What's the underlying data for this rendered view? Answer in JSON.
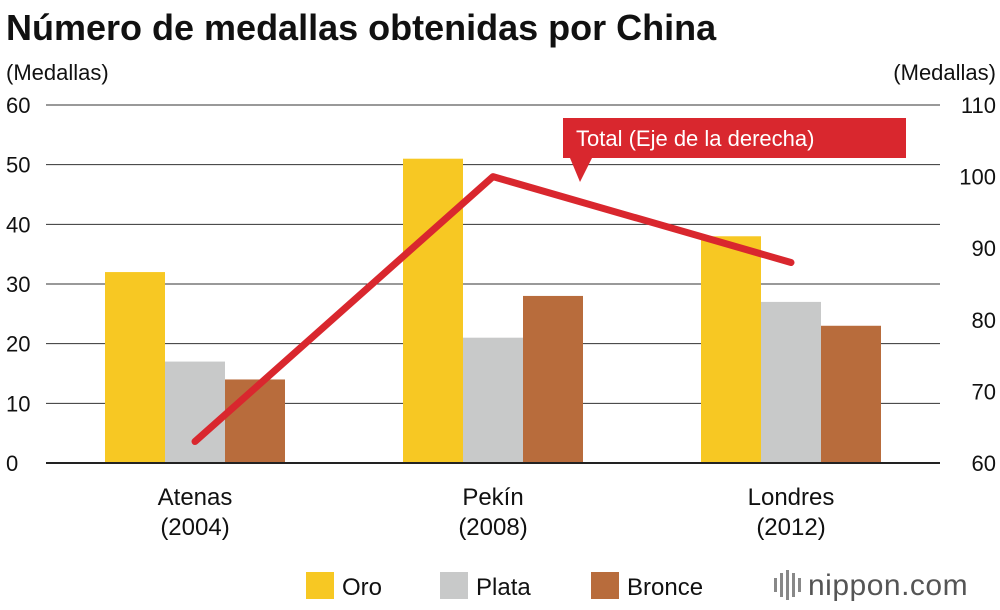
{
  "chart_data": {
    "type": "bar",
    "title": "Número de medallas obtenidas por China",
    "ylabel_left": "(Medallas)",
    "ylabel_right": "(Medallas)",
    "ylim_left": [
      0,
      60
    ],
    "yticks_left": [
      0,
      10,
      20,
      30,
      40,
      50,
      60
    ],
    "ylim_right": [
      60,
      110
    ],
    "yticks_right": [
      60,
      70,
      80,
      90,
      100,
      110
    ],
    "categories": [
      {
        "name": "Atenas",
        "year": "(2004)"
      },
      {
        "name": "Pekín",
        "year": "(2008)"
      },
      {
        "name": "Londres",
        "year": "(2012)"
      }
    ],
    "series": [
      {
        "name": "Oro",
        "color": "#f7c823",
        "values": [
          32,
          51,
          38
        ]
      },
      {
        "name": "Plata",
        "color": "#c8c9c9",
        "values": [
          17,
          21,
          27
        ]
      },
      {
        "name": "Bronce",
        "color": "#b86c3c",
        "values": [
          14,
          28,
          23
        ]
      }
    ],
    "line": {
      "name": "Total",
      "axis": "right",
      "color": "#d9272e",
      "values": [
        63,
        100,
        88
      ]
    },
    "annotation": "Total (Eje de la derecha)"
  },
  "logo": {
    "text": "nippon.com"
  }
}
